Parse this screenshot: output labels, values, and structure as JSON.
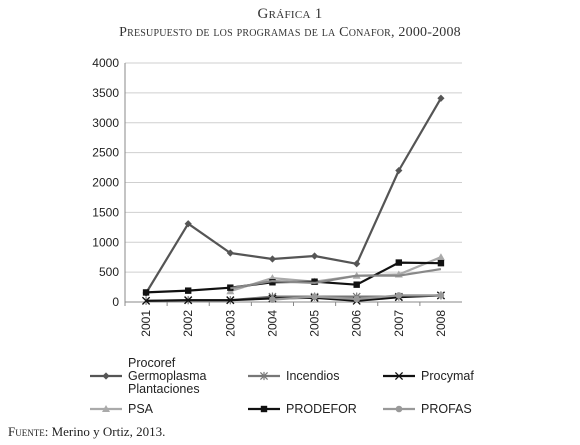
{
  "title": "Gráfica 1",
  "subtitle": "Presupuesto de los programas de la Conafor, 2000-2008",
  "source_label": "Fuente:",
  "source_text": " Merino y Ortiz, 2013.",
  "chart_data": {
    "type": "line",
    "categories": [
      "2001",
      "2002",
      "2003",
      "2004",
      "2005",
      "2006",
      "2007",
      "2008"
    ],
    "ylim": [
      0,
      4000
    ],
    "yticks": [
      "0",
      "500",
      "1000",
      "1500",
      "2000",
      "2500",
      "3000",
      "3500",
      "4000"
    ],
    "grid": true,
    "legend_position": "bottom",
    "series": [
      {
        "name": "Procoref\nGermoplasma\nPlantaciones",
        "values": [
          150,
          1310,
          820,
          720,
          770,
          640,
          2200,
          3410
        ],
        "color": "#555555",
        "marker": "diamond"
      },
      {
        "name": "Incendios",
        "values": [
          20,
          30,
          30,
          90,
          90,
          90,
          90,
          110
        ],
        "color": "#777777",
        "marker": "asterisk"
      },
      {
        "name": "Procymaf",
        "values": [
          20,
          30,
          30,
          60,
          70,
          20,
          80,
          110
        ],
        "color": "#111111",
        "marker": "x"
      },
      {
        "name": "PSA",
        "values": [
          null,
          null,
          180,
          400,
          340,
          440,
          460,
          750
        ],
        "color": "#aaaaaa",
        "marker": "triangle"
      },
      {
        "name": "PRODEFOR",
        "values": [
          160,
          190,
          240,
          330,
          340,
          290,
          660,
          650
        ],
        "color": "#111111",
        "marker": "square"
      },
      {
        "name": "PROFAS",
        "values": [
          null,
          null,
          null,
          40,
          90,
          50,
          110,
          110
        ],
        "color": "#999999",
        "marker": "circle"
      },
      {
        "name": "",
        "values": [
          null,
          null,
          230,
          350,
          320,
          440,
          440,
          550
        ],
        "color": "#888888",
        "marker": "none"
      }
    ]
  }
}
